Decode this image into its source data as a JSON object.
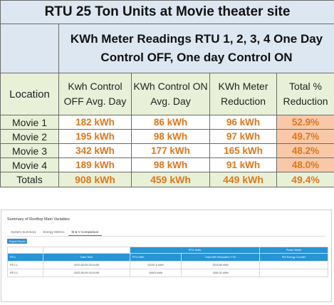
{
  "kwh_table": {
    "title": "RTU 25 Ton Units at Movie theater site",
    "subtitle_line1": "KWh Meter Readings RTU 1, 2, 3, 4 One Day",
    "subtitle_line2": "Control OFF, One day Control ON",
    "headers": {
      "location": "Location",
      "off_line1": "Kwh Control",
      "off_line2": "OFF Avg. Day",
      "on_line1": "KWh Control ON",
      "on_line2": "Avg. Day",
      "red_line1": "KWh Meter",
      "red_line2": "Reduction",
      "pct_line1": "Total %",
      "pct_line2": "Reduction"
    },
    "rows": [
      {
        "location": "Movie 1",
        "off": "182 kWh",
        "on": "86 kWh",
        "reduction": "96 kWh",
        "pct": "52.9%"
      },
      {
        "location": "Movie 2",
        "off": "195 kWh",
        "on": "98 kWh",
        "reduction": "97 kWh",
        "pct": "49.7%"
      },
      {
        "location": "Movie 3",
        "off": "342 kWh",
        "on": "177 kWh",
        "reduction": "165 kWh",
        "pct": "48.2%"
      },
      {
        "location": "Movie 4",
        "off": "189 kWh",
        "on": "98 kWh",
        "reduction": "91 kWh",
        "pct": "48.0%"
      }
    ],
    "totals": {
      "location": "Totals",
      "off": "908 kWh",
      "on": "459 kWh",
      "reduction": "449 kWh",
      "pct": "49.4%"
    }
  },
  "dashboard": {
    "title": "Summary of Rooftop Main Variables",
    "tabs": [
      "System Summary",
      "Energy Metrics",
      "M & V Comparison"
    ],
    "active_tab": "M & V Comparison",
    "export_label": "Export Excel",
    "group_headers": {
      "rtu_units": "RTU Units",
      "power_meter": "Power Meter"
    },
    "columns": [
      "RTU",
      "Date-Time",
      "RTU kWh",
      "Total kWh Reduction YTD",
      "PM Energy Counter"
    ],
    "rows": [
      {
        "rtu": "RTU 1",
        "datetime": "2020-05-09 03:04:55",
        "kwh": "20297.6 kWh",
        "reduction": "1518.69 kWh",
        "pm": ""
      },
      {
        "rtu": "RTU 2",
        "datetime": "2020-05-09 03:04:55",
        "kwh": "15402 kWh",
        "reduction": "1350.31 kWh",
        "pm": ""
      }
    ],
    "colors": {
      "header_blue": "#2794d6",
      "button_blue": "#3a8ec9"
    }
  },
  "colors": {
    "title_bg": "#dde7f1",
    "header_bg": "#e8f1d8",
    "value_orange": "#e0771a",
    "pct_bg": "#f8c9a9",
    "border": "#6b6b6b"
  }
}
